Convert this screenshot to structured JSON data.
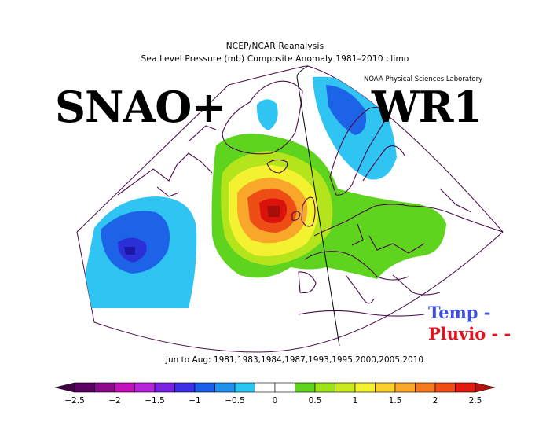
{
  "header": {
    "line1": "NCEP/NCAR Reanalysis",
    "line2": "Sea Level Pressure (mb) Composite Anomaly 1981–2010 climo",
    "credit": "NOAA Physical Sciences Laboratory"
  },
  "labels": {
    "left": "SNAO+",
    "right": "WR1",
    "temp": "Temp -",
    "pluvio": "Pluvio - -"
  },
  "period": "Jun to Aug: 1981,1983,1984,1987,1993,1995,2000,2005,2010",
  "colorbar": {
    "ticks": [
      "−2.5",
      "−2",
      "−1.5",
      "−1",
      "−0.5",
      "0",
      "0.5",
      "1",
      "1.5",
      "2",
      "2.5"
    ],
    "colors": [
      "#5a0060",
      "#8a0b8a",
      "#c012b8",
      "#b526d8",
      "#7b22e0",
      "#3d2fe6",
      "#1b5ee8",
      "#2190ea",
      "#28c6f0",
      "#ffffff",
      "#ffffff",
      "#5ed41e",
      "#9ee21a",
      "#cbe820",
      "#f4f230",
      "#fad02a",
      "#f8a72a",
      "#f47a20",
      "#ee4d16",
      "#e11c10"
    ],
    "low_end": "#3f0045",
    "high_end": "#b5120a"
  },
  "map_colors": {
    "blue_dark": "#2b2fd6",
    "blue": "#1d63e8",
    "cyan": "#30c4f2",
    "green": "#5ed41e",
    "yellow_green": "#b4e41c",
    "yellow": "#f4f230",
    "orange": "#f8a72a",
    "red_orange": "#ee4d16",
    "red": "#d9130c",
    "coast": "#4a0b4a"
  }
}
